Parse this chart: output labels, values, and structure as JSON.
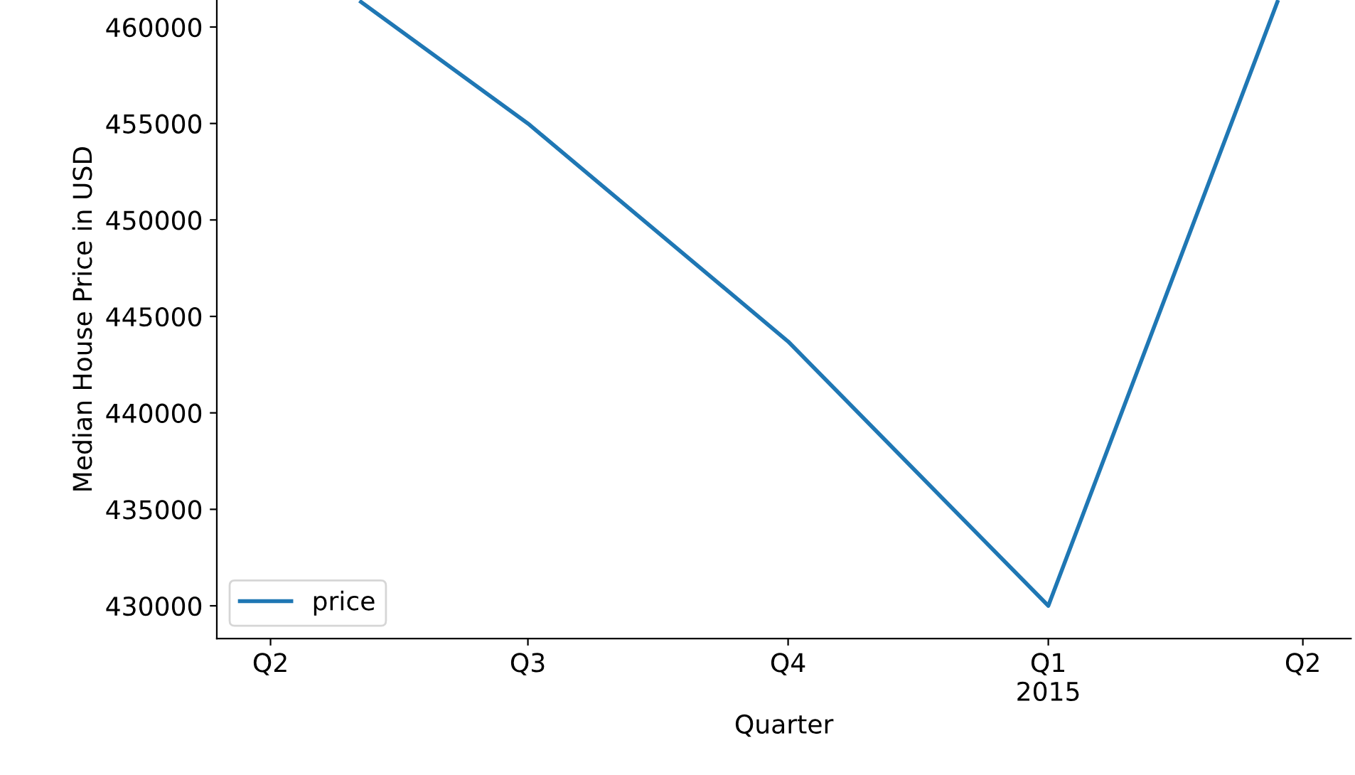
{
  "chart_data": {
    "type": "line",
    "xlabel": "Quarter",
    "ylabel": "Median House Price in USD",
    "x": [
      "2014-05-03",
      "2014-07-01",
      "2014-10-01",
      "2015-01-01",
      "2015-03-23"
    ],
    "series": [
      {
        "name": "price",
        "color": "#1f77b4",
        "values": [
          461300,
          455000,
          443700,
          430000,
          461300
        ]
      }
    ],
    "xlim": [
      "2014-03-13",
      "2015-04-18"
    ],
    "xticks": [
      {
        "value": "2014-04-01",
        "label": "Q2"
      },
      {
        "value": "2014-07-01",
        "label": "Q3"
      },
      {
        "value": "2014-10-01",
        "label": "Q4"
      },
      {
        "value": "2015-01-01",
        "label": "Q1\n2015"
      },
      {
        "value": "2015-04-01",
        "label": "Q2"
      }
    ],
    "ylim": [
      428300,
      461400
    ],
    "yticks": [
      430000,
      435000,
      440000,
      445000,
      450000,
      455000,
      460000
    ],
    "legend": "lower left",
    "grid": false,
    "marker": "none",
    "line_style": "solid"
  }
}
